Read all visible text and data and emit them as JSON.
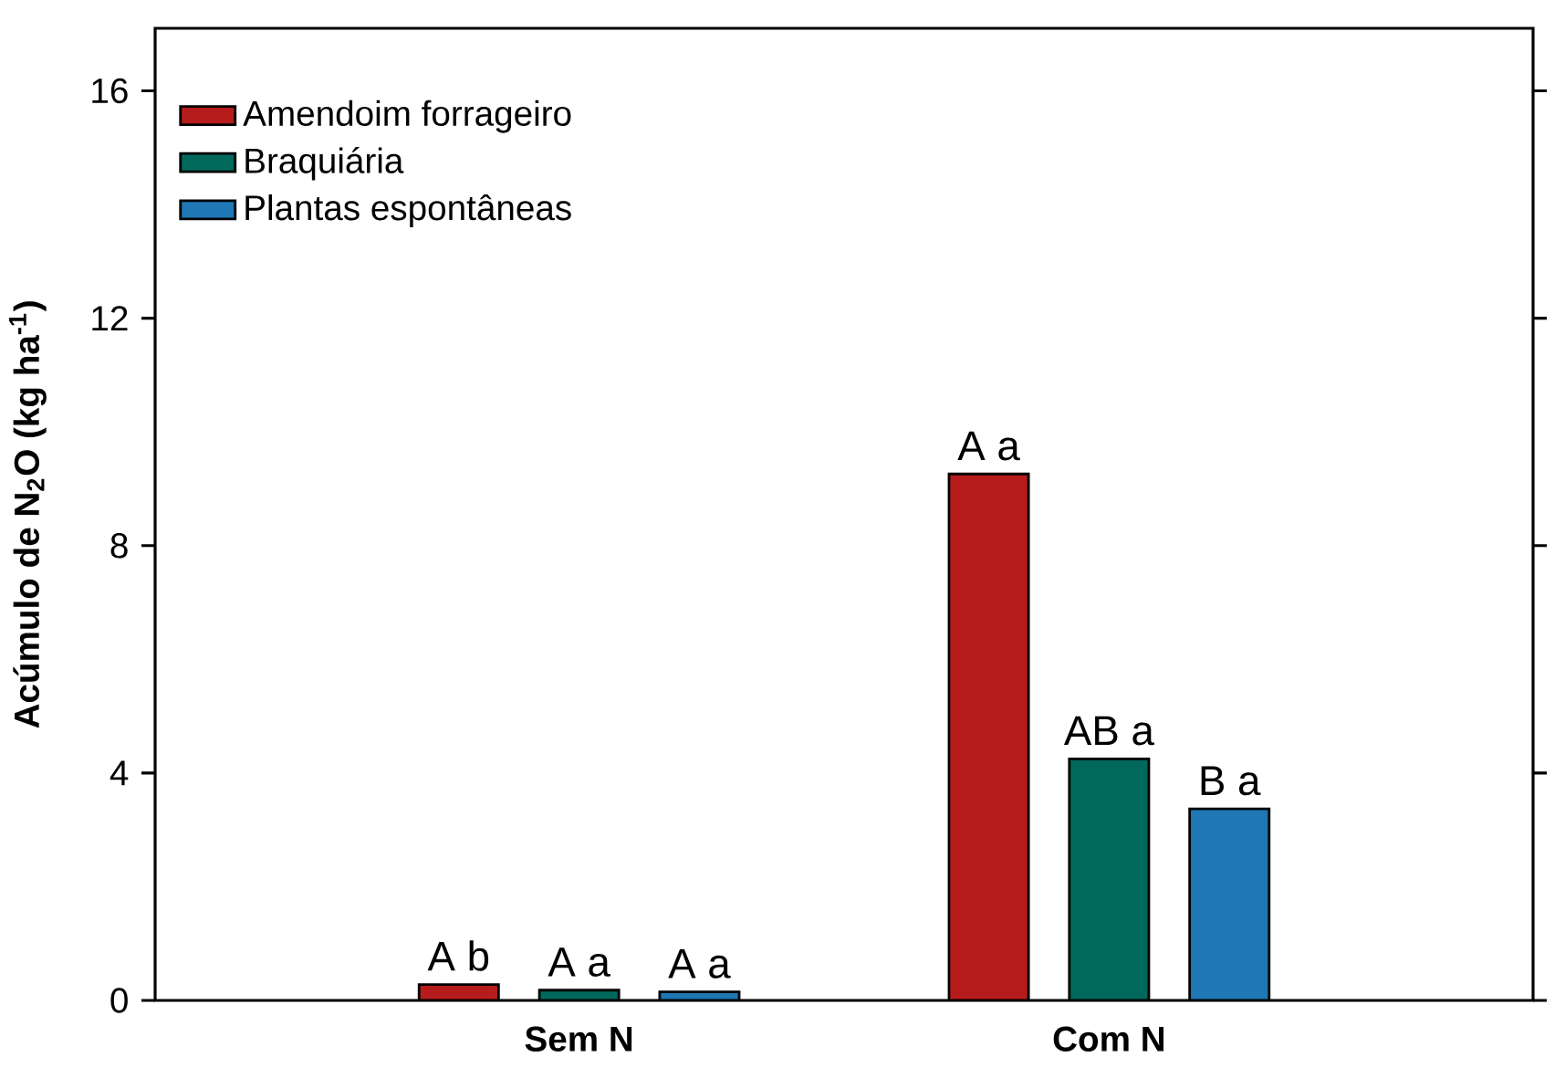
{
  "chart_data": {
    "type": "bar",
    "ylabel": "Acúmulo de N$_{2}$O (kg ha$^{-1}$)",
    "categories": [
      "Sem N",
      "Com N"
    ],
    "series": [
      {
        "name": "Amendoim forrageiro",
        "color": "#b71c1c",
        "values": [
          0.28,
          9.26
        ],
        "value_labels": [
          "A b",
          "A a"
        ]
      },
      {
        "name": "Braquiária",
        "color": "#00695c",
        "values": [
          0.18,
          4.25
        ],
        "value_labels": [
          "A a",
          "AB a"
        ]
      },
      {
        "name": "Plantas espontâneas",
        "color": "#1f77b4",
        "values": [
          0.15,
          3.37
        ],
        "value_labels": [
          "A a",
          "B a"
        ]
      }
    ],
    "ylim": [
      0,
      17.1
    ],
    "yticks": [
      0,
      4,
      8,
      12,
      16
    ],
    "legend": "top left"
  }
}
